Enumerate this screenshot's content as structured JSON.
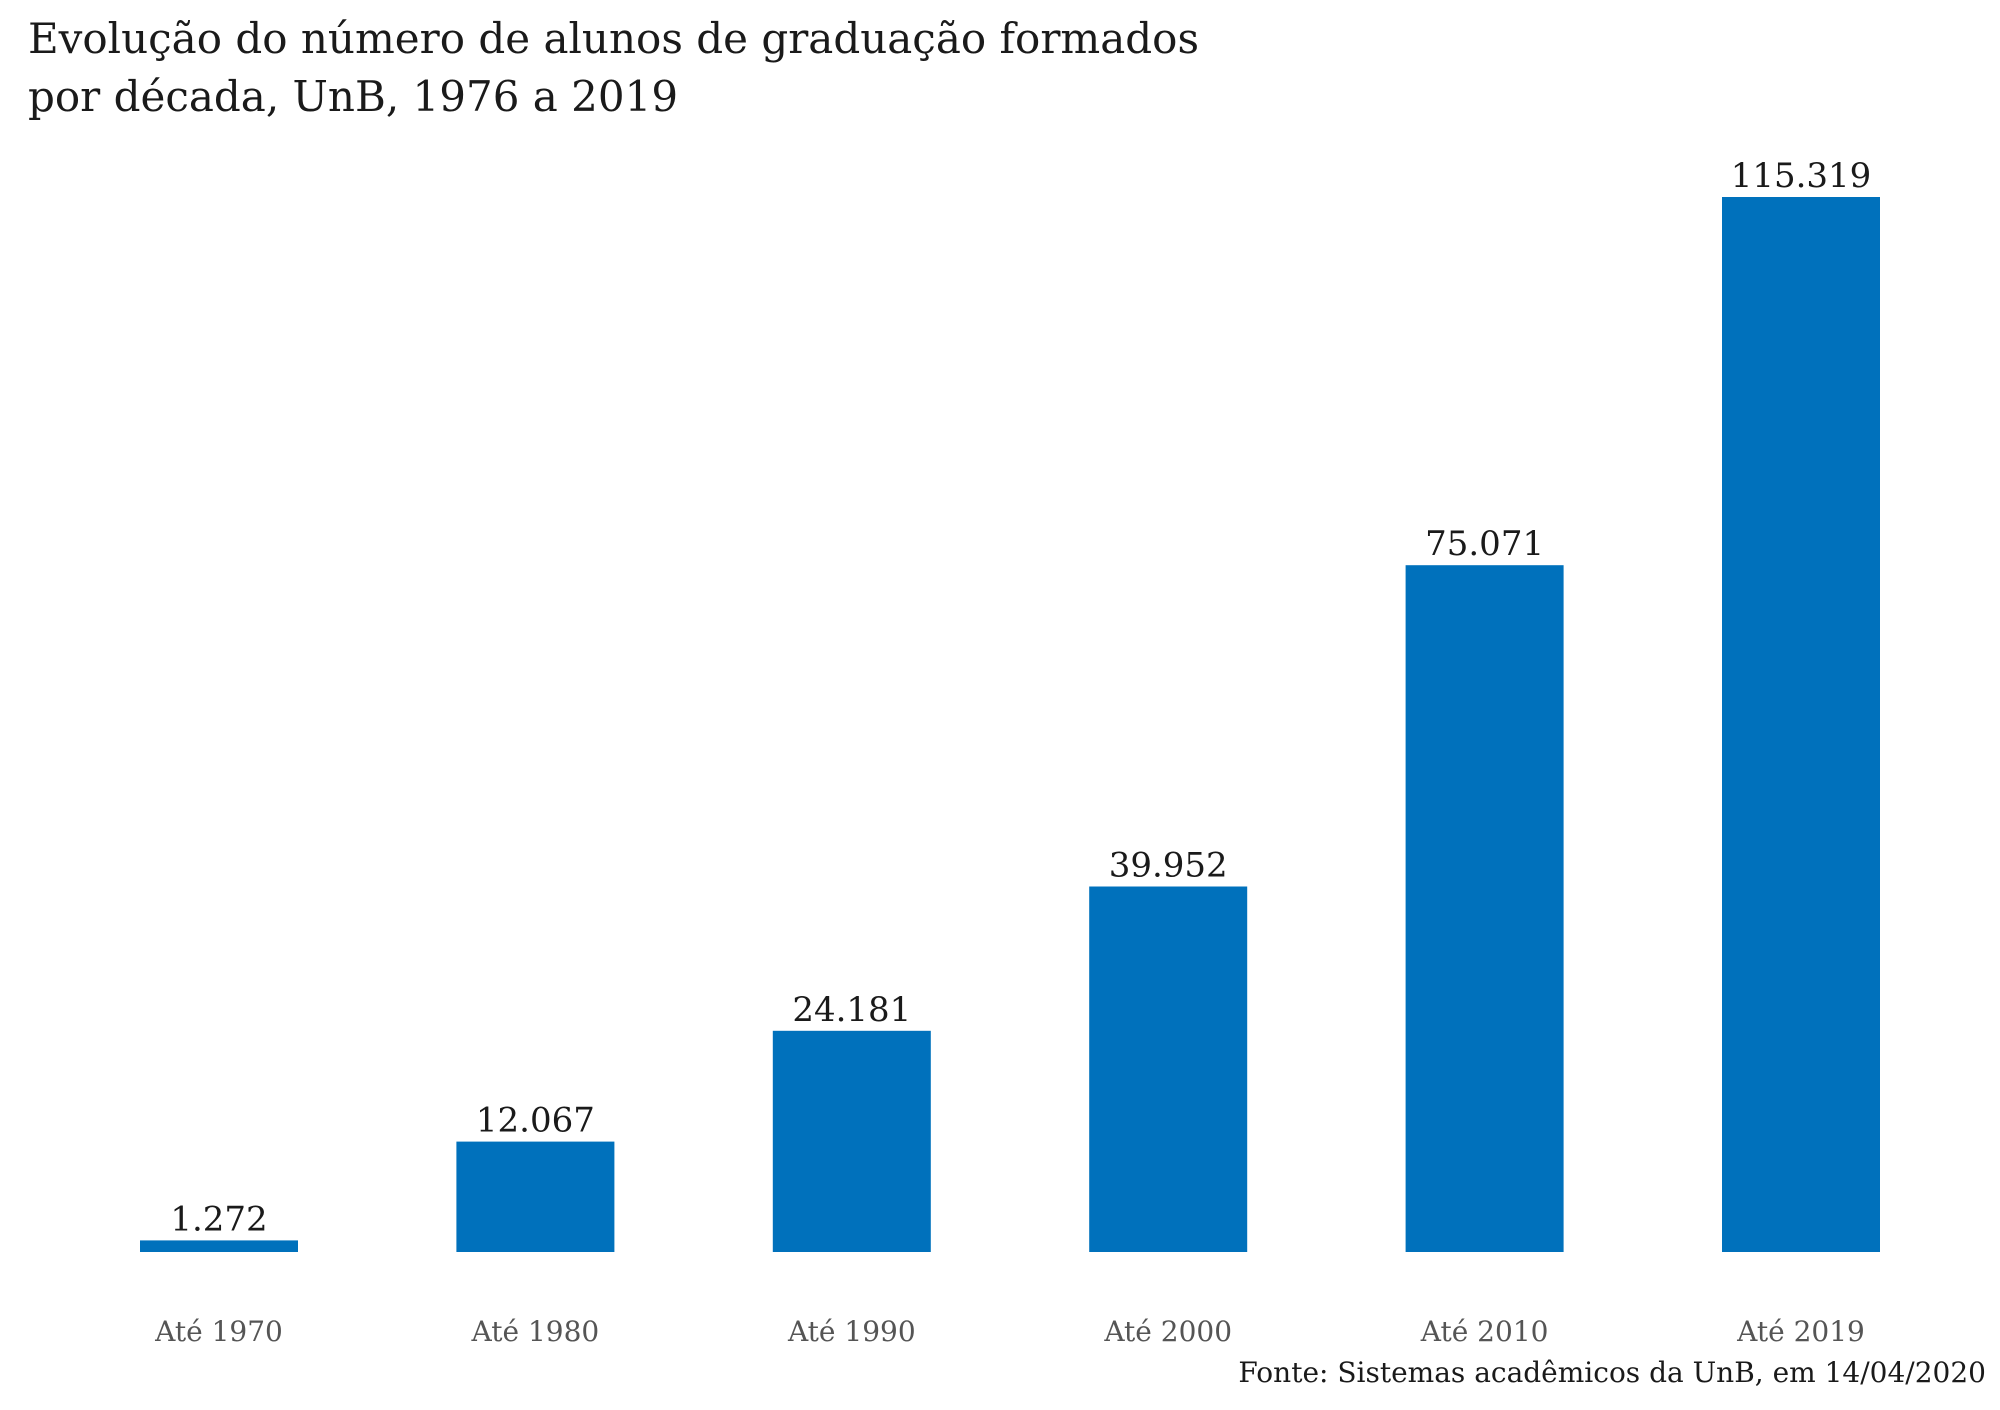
{
  "chart_data": {
    "type": "bar",
    "title_lines": [
      "Evolução do número de alunos de graduação formados",
      "por década, UnB, 1976 a 2019"
    ],
    "categories": [
      "Até 1970",
      "Até 1980",
      "Até 1990",
      "Até 2000",
      "Até 2010",
      "Até 2019"
    ],
    "values": [
      1272,
      12067,
      24181,
      39952,
      75071,
      115319
    ],
    "value_labels": [
      "1.272",
      "12.067",
      "24.181",
      "39.952",
      "75.071",
      "115.319"
    ],
    "xlabel": "",
    "ylabel": "",
    "ylim": [
      0,
      115319
    ],
    "grid": false,
    "legend": "none",
    "colors": {
      "bar": "#0071bc",
      "value_label": "#1a1a1a",
      "tick_label": "#555555"
    },
    "source": "Fonte: Sistemas acadêmicos da UnB, em 14/04/2020"
  }
}
